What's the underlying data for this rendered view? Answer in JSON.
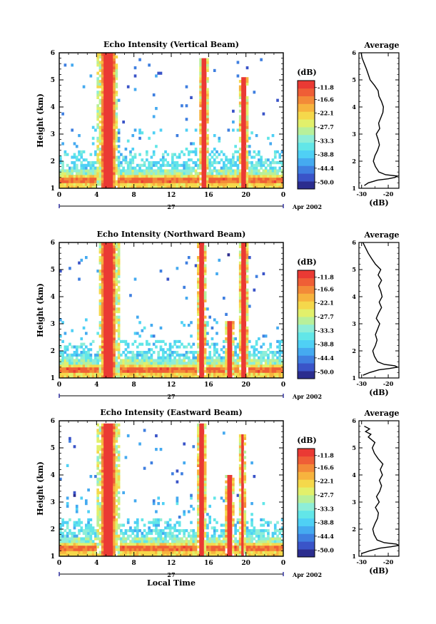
{
  "colors": {
    "palette": [
      "#2b2d8e",
      "#3a54c8",
      "#3f7fe0",
      "#45aaf0",
      "#4fd0f5",
      "#62e6e8",
      "#8eeed8",
      "#b8f09a",
      "#e2f06b",
      "#f5d84b",
      "#f7b33e",
      "#f38a38",
      "#ef5e36",
      "#ea3a34"
    ]
  },
  "chart_data": [
    {
      "type": "heatmap",
      "title": "Echo Intensity (Vertical Beam)",
      "ylabel": "Height (km)",
      "xlabel": "",
      "xlim": [
        0,
        24
      ],
      "ylim": [
        1,
        6
      ],
      "x_ticks": [
        "0",
        "4",
        "8",
        "12",
        "16",
        "20",
        "0"
      ],
      "y_ticks": [
        "1",
        "2",
        "3",
        "4",
        "5",
        "6"
      ],
      "date_axis": {
        "day": "27",
        "month_year": "Apr 2002"
      },
      "colorbar": {
        "unit": "(dB)",
        "levels": [
          "-11.8",
          "-16.6",
          "-22.1",
          "-27.7",
          "-33.3",
          "-38.8",
          "-44.4",
          "-50.0"
        ],
        "range": [
          -52.8,
          -9.0
        ]
      },
      "features": {
        "column_center": 5.2,
        "column_width": 1.5,
        "spikes": [
          {
            "x": 15.5,
            "top": 5.8
          },
          {
            "x": 19.7,
            "top": 5.1
          }
        ],
        "precip_top": 6.0
      },
      "profile": {
        "title": "Average",
        "xlabel": "(dB)",
        "x_ticks": [
          "-30",
          "-20"
        ],
        "xlim": [
          -31,
          -16
        ],
        "heights": [
          1.1,
          1.2,
          1.3,
          1.35,
          1.4,
          1.45,
          1.5,
          1.6,
          1.8,
          2.0,
          2.2,
          2.4,
          2.6,
          2.8,
          3.0,
          3.2,
          3.4,
          3.6,
          3.8,
          4.0,
          4.2,
          4.4,
          4.6,
          4.8,
          5.0,
          5.2,
          5.4,
          5.6,
          5.8,
          6.0
        ],
        "values": [
          -29.0,
          -27.5,
          -24.0,
          -20.0,
          -17.5,
          -16.5,
          -21.0,
          -23.5,
          -24.8,
          -25.6,
          -25.0,
          -24.0,
          -23.3,
          -23.8,
          -24.5,
          -23.2,
          -23.6,
          -22.8,
          -22.0,
          -21.8,
          -22.5,
          -23.5,
          -23.8,
          -25.2,
          -26.8,
          -27.5,
          -28.2,
          -29.0,
          -29.8,
          -30.2
        ]
      }
    },
    {
      "type": "heatmap",
      "title": "Echo Intensity (Northward Beam)",
      "ylabel": "Height (km)",
      "xlabel": "",
      "xlim": [
        0,
        24
      ],
      "ylim": [
        1,
        6
      ],
      "x_ticks": [
        "0",
        "4",
        "8",
        "12",
        "16",
        "20",
        "0"
      ],
      "y_ticks": [
        "1",
        "2",
        "3",
        "4",
        "5",
        "6"
      ],
      "date_axis": {
        "day": "27",
        "month_year": "Apr 2002"
      },
      "colorbar": {
        "unit": "(dB)",
        "levels": [
          "-11.8",
          "-16.6",
          "-22.1",
          "-27.7",
          "-33.3",
          "-38.8",
          "-44.4",
          "-50.0"
        ],
        "range": [
          -52.8,
          -9.0
        ]
      },
      "features": {
        "column_center": 5.3,
        "column_width": 1.5,
        "spikes": [
          {
            "x": 15.3,
            "top": 6.0
          },
          {
            "x": 18.3,
            "top": 3.1
          },
          {
            "x": 19.7,
            "top": 6.0
          }
        ],
        "precip_top": 6.0
      },
      "profile": {
        "title": "Average",
        "xlabel": "(dB)",
        "x_ticks": [
          "-30",
          "-20"
        ],
        "xlim": [
          -31,
          -16
        ],
        "heights": [
          1.1,
          1.2,
          1.3,
          1.35,
          1.4,
          1.45,
          1.5,
          1.6,
          1.8,
          2.0,
          2.2,
          2.4,
          2.6,
          2.8,
          3.0,
          3.2,
          3.4,
          3.6,
          3.8,
          4.0,
          4.2,
          4.4,
          4.6,
          4.8,
          5.0,
          5.2,
          5.4,
          5.6,
          5.8,
          6.0
        ],
        "values": [
          -29.5,
          -27.0,
          -23.5,
          -19.5,
          -16.5,
          -17.5,
          -21.5,
          -24.0,
          -25.2,
          -25.8,
          -24.8,
          -24.2,
          -24.8,
          -24.0,
          -23.2,
          -24.5,
          -23.6,
          -22.5,
          -23.4,
          -22.3,
          -22.8,
          -23.6,
          -22.5,
          -23.8,
          -22.8,
          -24.8,
          -26.2,
          -27.5,
          -28.5,
          -29.5
        ]
      }
    },
    {
      "type": "heatmap",
      "title": "Echo Intensity (Eastward Beam)",
      "ylabel": "Height (km)",
      "xlabel": "Local Time",
      "xlim": [
        0,
        24
      ],
      "ylim": [
        1,
        6
      ],
      "x_ticks": [
        "0",
        "4",
        "8",
        "12",
        "16",
        "20",
        "0"
      ],
      "y_ticks": [
        "1",
        "2",
        "3",
        "4",
        "5",
        "6"
      ],
      "date_axis": {
        "day": "27",
        "month_year": "Apr 2002"
      },
      "colorbar": {
        "unit": "(dB)",
        "levels": [
          "-11.8",
          "-16.6",
          "-22.1",
          "-27.7",
          "-33.3",
          "-38.8",
          "-44.4",
          "-50.0"
        ],
        "range": [
          -52.8,
          -9.0
        ]
      },
      "features": {
        "column_center": 5.3,
        "column_width": 1.6,
        "spikes": [
          {
            "x": 15.2,
            "top": 5.9
          },
          {
            "x": 18.3,
            "top": 4.0
          },
          {
            "x": 19.6,
            "top": 5.5
          }
        ],
        "precip_top": 5.9
      },
      "profile": {
        "title": "Average",
        "xlabel": "(dB)",
        "x_ticks": [
          "-30",
          "-20"
        ],
        "xlim": [
          -31,
          -16
        ],
        "heights": [
          1.1,
          1.2,
          1.3,
          1.35,
          1.4,
          1.45,
          1.5,
          1.6,
          1.8,
          2.0,
          2.2,
          2.4,
          2.6,
          2.8,
          3.0,
          3.2,
          3.4,
          3.6,
          3.8,
          4.0,
          4.2,
          4.4,
          4.6,
          4.8,
          5.0,
          5.2,
          5.4,
          5.5,
          5.6,
          5.7,
          5.8
        ],
        "values": [
          -30.0,
          -27.0,
          -23.0,
          -19.0,
          -16.0,
          -17.0,
          -21.5,
          -24.2,
          -25.3,
          -25.8,
          -25.0,
          -24.0,
          -23.7,
          -24.8,
          -23.4,
          -24.4,
          -23.2,
          -22.5,
          -23.3,
          -22.2,
          -23.0,
          -22.0,
          -23.8,
          -25.2,
          -26.0,
          -25.0,
          -27.5,
          -26.5,
          -28.5,
          -27.0,
          -29.0
        ]
      }
    }
  ]
}
